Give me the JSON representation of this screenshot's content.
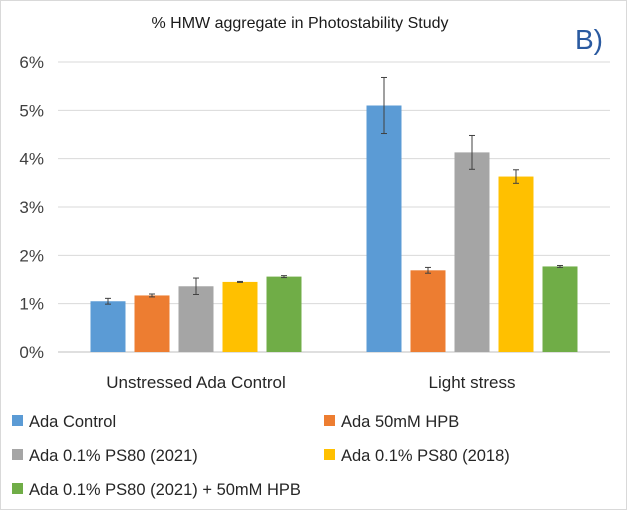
{
  "chart_data": {
    "type": "bar",
    "title": "% HMW aggregate in Photostability Study",
    "panel_label": "B)",
    "categories": [
      "Unstressed Ada Control",
      "Light stress"
    ],
    "ylim": [
      0,
      6
    ],
    "yticks": [
      0,
      1,
      2,
      3,
      4,
      5,
      6
    ],
    "ytick_labels": [
      "0%",
      "1%",
      "2%",
      "3%",
      "4%",
      "5%",
      "6%"
    ],
    "grid": true,
    "legend_position": "bottom",
    "series": [
      {
        "name": "Ada Control",
        "color": "#5b9bd5",
        "values": [
          1.05,
          5.1
        ],
        "errors": [
          0.06,
          0.58
        ]
      },
      {
        "name": "Ada 50mM HPB",
        "color": "#ed7d31",
        "values": [
          1.17,
          1.69
        ],
        "errors": [
          0.03,
          0.06
        ]
      },
      {
        "name": "Ada 0.1% PS80 (2021)",
        "color": "#a5a5a5",
        "values": [
          1.36,
          4.13
        ],
        "errors": [
          0.17,
          0.35
        ]
      },
      {
        "name": "Ada 0.1% PS80 (2018)",
        "color": "#ffc000",
        "values": [
          1.45,
          3.63
        ],
        "errors": [
          0.01,
          0.14
        ]
      },
      {
        "name": "Ada 0.1% PS80 (2021) + 50mM HPB",
        "color": "#70ad47",
        "values": [
          1.56,
          1.77
        ],
        "errors": [
          0.02,
          0.02
        ]
      }
    ]
  }
}
